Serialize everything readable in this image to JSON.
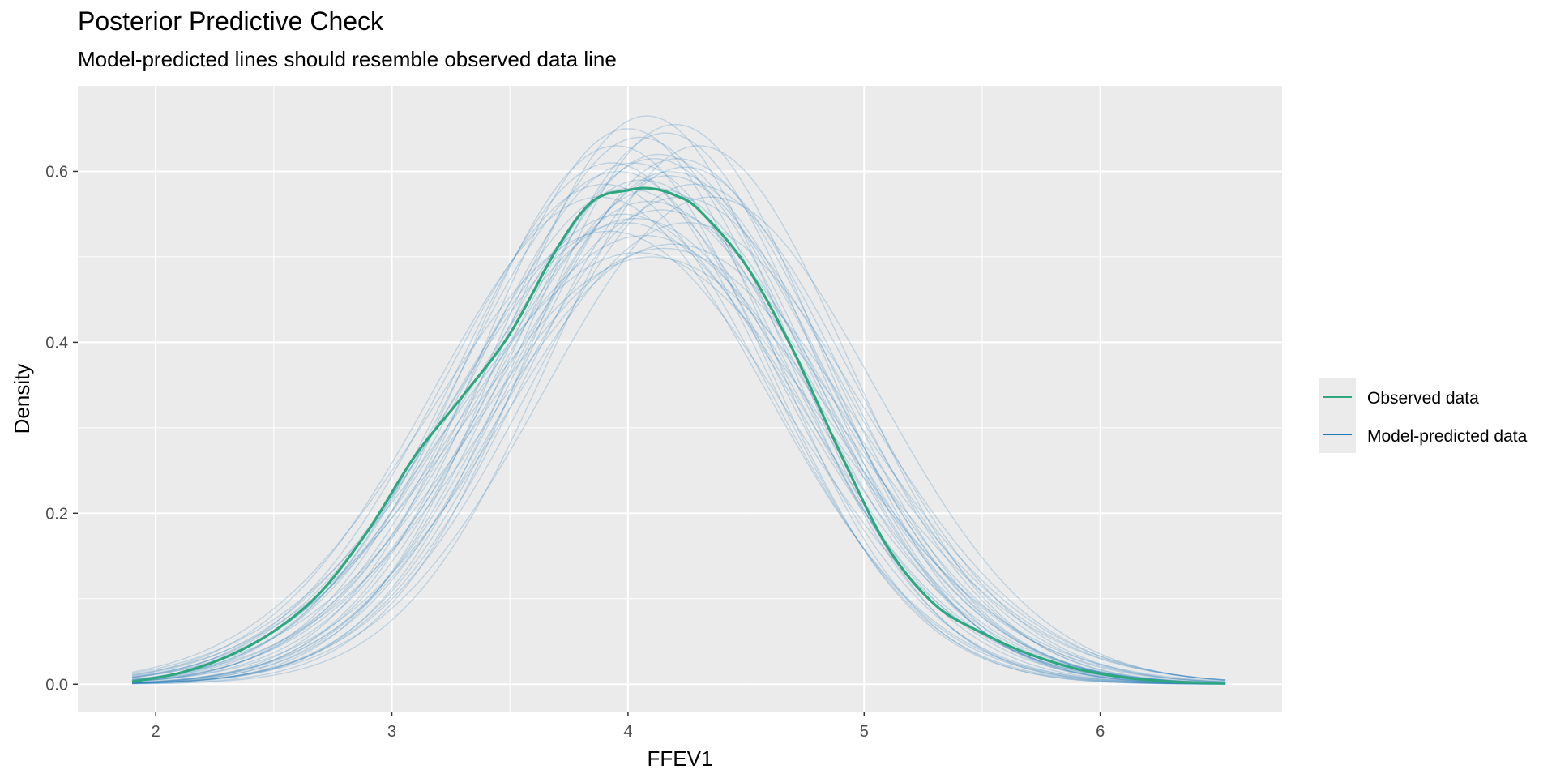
{
  "title": "Posterior Predictive Check",
  "subtitle": "Model-predicted lines should resemble observed data line",
  "chart_data": {
    "type": "line",
    "title": "Posterior Predictive Check",
    "subtitle": "Model-predicted lines should resemble observed data line",
    "xlabel": "FFEV1",
    "ylabel": "Density",
    "xlim": [
      1.67,
      6.77
    ],
    "ylim": [
      -0.032,
      0.7
    ],
    "xticks": [
      2,
      3,
      4,
      5,
      6
    ],
    "yticks": [
      0.0,
      0.2,
      0.4,
      0.6
    ],
    "ytick_labels": [
      "0.0",
      "0.2",
      "0.4",
      "0.6"
    ],
    "grid": true,
    "legend_position": "right",
    "legend": [
      {
        "name": "Observed data",
        "color": "#2ca77f"
      },
      {
        "name": "Model-predicted data",
        "color": "#1f78b4"
      }
    ],
    "observed": {
      "name": "Observed data",
      "color": "#2ca77f",
      "x": [
        1.9,
        2.1,
        2.3,
        2.5,
        2.7,
        2.9,
        3.1,
        3.3,
        3.5,
        3.7,
        3.85,
        4.0,
        4.1,
        4.2,
        4.3,
        4.5,
        4.7,
        4.9,
        5.1,
        5.3,
        5.5,
        5.7,
        5.9,
        6.1,
        6.3,
        6.53
      ],
      "y": [
        0.003,
        0.013,
        0.032,
        0.062,
        0.108,
        0.18,
        0.268,
        0.337,
        0.41,
        0.51,
        0.565,
        0.578,
        0.58,
        0.572,
        0.555,
        0.49,
        0.39,
        0.27,
        0.16,
        0.093,
        0.06,
        0.035,
        0.018,
        0.008,
        0.003,
        0.001
      ]
    },
    "predicted": {
      "name": "Model-predicted data",
      "color": "#1f78b4",
      "x_range": [
        1.9,
        6.53
      ],
      "replicates": [
        {
          "mean": 4.12,
          "sd": 0.69,
          "peak": 0.58
        },
        {
          "mean": 4.05,
          "sd": 0.62,
          "peak": 0.64
        },
        {
          "mean": 4.18,
          "sd": 0.66,
          "peak": 0.6
        },
        {
          "mean": 3.98,
          "sd": 0.72,
          "peak": 0.55
        },
        {
          "mean": 4.22,
          "sd": 0.7,
          "peak": 0.57
        },
        {
          "mean": 4.08,
          "sd": 0.6,
          "peak": 0.665
        },
        {
          "mean": 3.92,
          "sd": 0.75,
          "peak": 0.53
        },
        {
          "mean": 4.15,
          "sd": 0.78,
          "peak": 0.51
        },
        {
          "mean": 4.02,
          "sd": 0.66,
          "peak": 0.61
        },
        {
          "mean": 4.28,
          "sd": 0.68,
          "peak": 0.585
        },
        {
          "mean": 3.95,
          "sd": 0.63,
          "peak": 0.63
        },
        {
          "mean": 4.1,
          "sd": 0.8,
          "peak": 0.5
        },
        {
          "mean": 4.2,
          "sd": 0.61,
          "peak": 0.655
        },
        {
          "mean": 4.0,
          "sd": 0.69,
          "peak": 0.58
        },
        {
          "mean": 4.25,
          "sd": 0.74,
          "peak": 0.54
        },
        {
          "mean": 3.88,
          "sd": 0.7,
          "peak": 0.57
        },
        {
          "mean": 4.13,
          "sd": 0.64,
          "peak": 0.62
        },
        {
          "mean": 4.07,
          "sd": 0.76,
          "peak": 0.525
        },
        {
          "mean": 4.17,
          "sd": 0.67,
          "peak": 0.595
        },
        {
          "mean": 3.96,
          "sd": 0.67,
          "peak": 0.6
        },
        {
          "mean": 4.3,
          "sd": 0.63,
          "peak": 0.63
        },
        {
          "mean": 4.03,
          "sd": 0.73,
          "peak": 0.545
        },
        {
          "mean": 4.11,
          "sd": 0.65,
          "peak": 0.615
        },
        {
          "mean": 4.19,
          "sd": 0.77,
          "peak": 0.515
        },
        {
          "mean": 3.93,
          "sd": 0.65,
          "peak": 0.61
        },
        {
          "mean": 4.09,
          "sd": 0.71,
          "peak": 0.565
        },
        {
          "mean": 4.24,
          "sd": 0.66,
          "peak": 0.605
        },
        {
          "mean": 4.0,
          "sd": 0.61,
          "peak": 0.65
        },
        {
          "mean": 4.14,
          "sd": 0.72,
          "peak": 0.555
        },
        {
          "mean": 4.06,
          "sd": 0.68,
          "peak": 0.59
        },
        {
          "mean": 4.35,
          "sd": 0.7,
          "peak": 0.57
        },
        {
          "mean": 3.9,
          "sd": 0.68,
          "peak": 0.585
        },
        {
          "mean": 4.16,
          "sd": 0.62,
          "peak": 0.645
        },
        {
          "mean": 4.04,
          "sd": 0.79,
          "peak": 0.505
        },
        {
          "mean": 4.21,
          "sd": 0.65,
          "peak": 0.615
        },
        {
          "mean": 3.99,
          "sd": 0.74,
          "peak": 0.54
        }
      ]
    }
  }
}
